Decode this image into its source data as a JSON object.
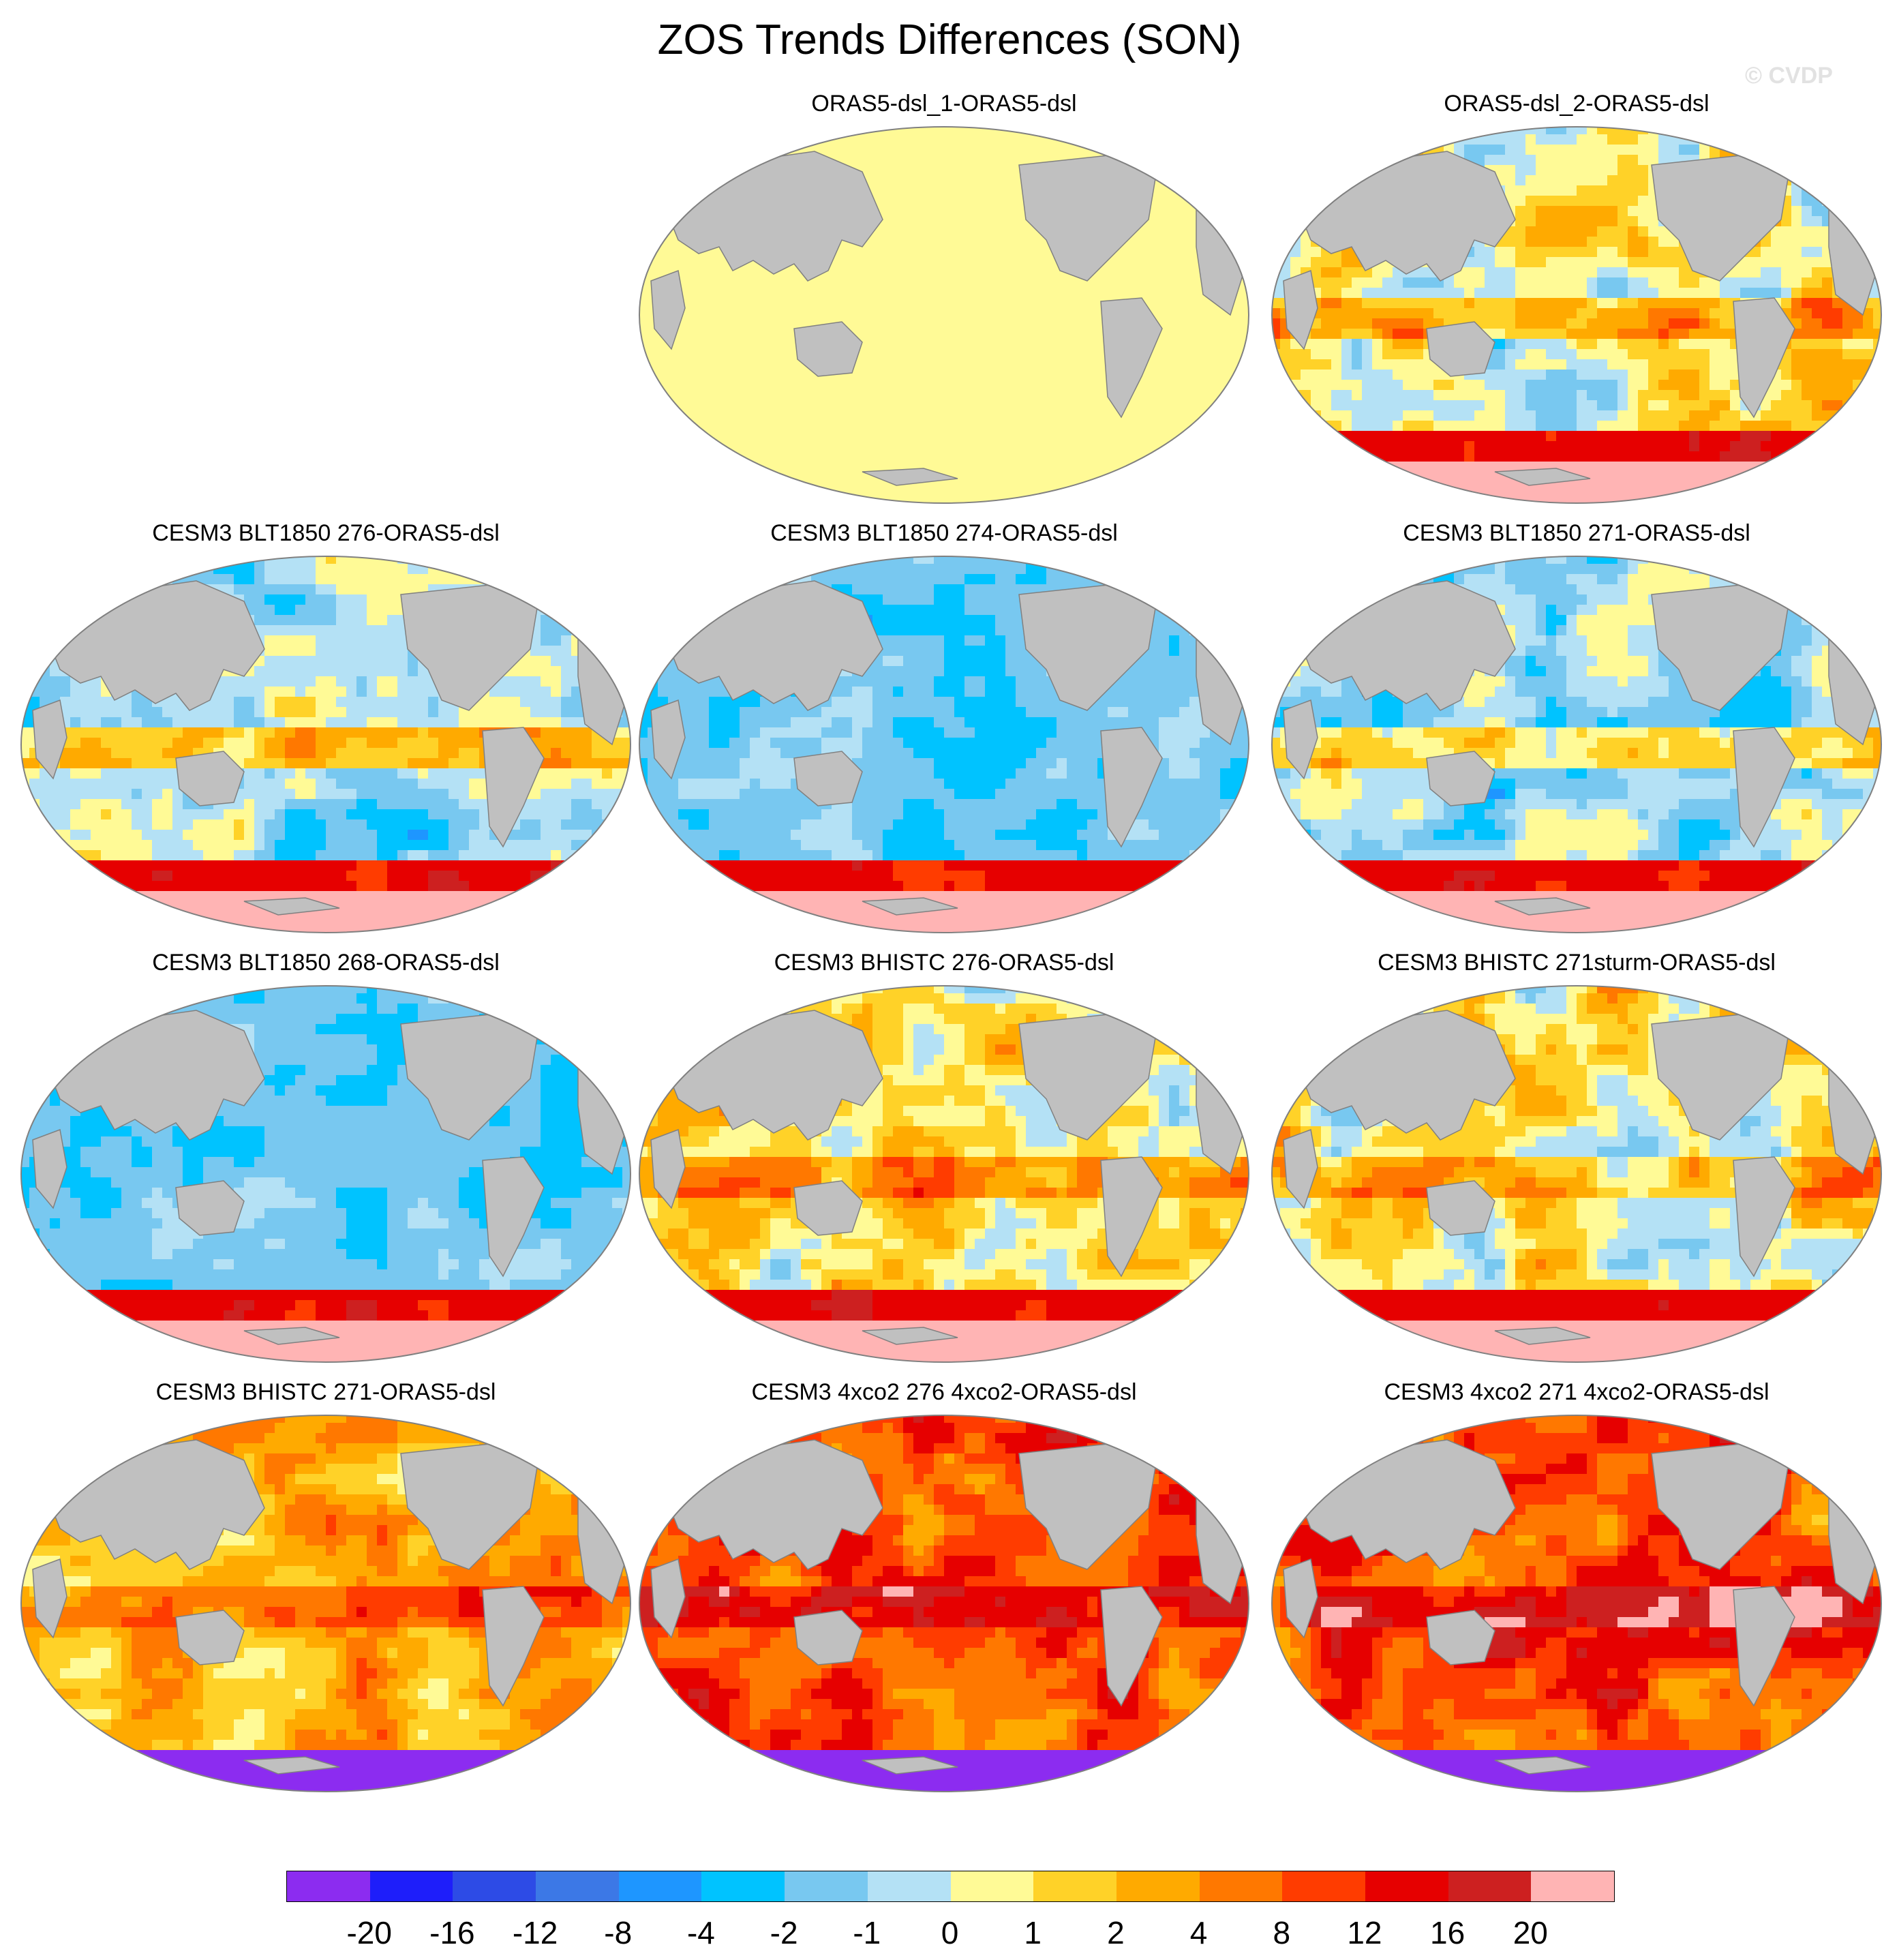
{
  "title": "ZOS Trends Differences (SON)",
  "watermark": "© CVDP",
  "colors": {
    "land": "#c0c0c0",
    "land_edge": "#808080",
    "outline": "#808080"
  },
  "panels": [
    {
      "title": "ORAS5-dsl_1-ORAS5-dsl",
      "pattern": "uniform"
    },
    {
      "title": "ORAS5-dsl_2-ORAS5-dsl",
      "pattern": "mixed"
    },
    {
      "title": "CESM3 BLT1850 276-ORAS5-dsl",
      "pattern": "cool-mixed"
    },
    {
      "title": "CESM3 BLT1850 274-ORAS5-dsl",
      "pattern": "cool"
    },
    {
      "title": "CESM3 BLT1850 271-ORAS5-dsl",
      "pattern": "cool-mixed"
    },
    {
      "title": "CESM3 BLT1850 268-ORAS5-dsl",
      "pattern": "cool"
    },
    {
      "title": "CESM3 BHISTC 276-ORAS5-dsl",
      "pattern": "mixed"
    },
    {
      "title": "CESM3 BHISTC 271sturm-ORAS5-dsl",
      "pattern": "mixed"
    },
    {
      "title": "CESM3 BHISTC 271-ORAS5-dsl",
      "pattern": "warm"
    },
    {
      "title": "CESM3 4xco2 276 4xco2-ORAS5-dsl",
      "pattern": "hot"
    },
    {
      "title": "CESM3 4xco2 271 4xco2-ORAS5-dsl",
      "pattern": "hot"
    }
  ],
  "colorbar": {
    "colors": [
      "#8c2cf0",
      "#1e1efa",
      "#2d4be6",
      "#3c78e6",
      "#1e96ff",
      "#00c3ff",
      "#78c8f0",
      "#b4e1f5",
      "#fffa96",
      "#ffd228",
      "#ffaa00",
      "#ff7800",
      "#ff3c00",
      "#e60000",
      "#cd2020",
      "#ffb4b4"
    ],
    "labels": [
      "-20",
      "-16",
      "-12",
      "-8",
      "-4",
      "-2",
      "-1",
      "0",
      "1",
      "2",
      "4",
      "8",
      "12",
      "16",
      "20"
    ]
  }
}
